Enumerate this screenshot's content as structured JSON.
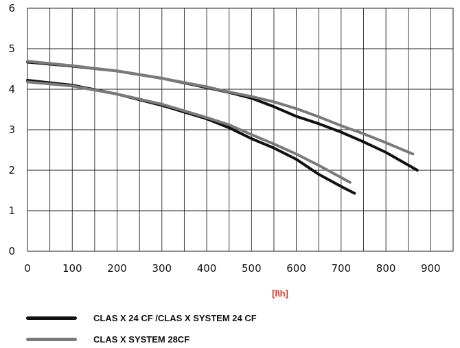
{
  "chart_data": {
    "type": "line",
    "title": "",
    "xlabel": "[l\\h]",
    "ylabel": "",
    "xlim": [
      0,
      950
    ],
    "ylim": [
      0,
      6
    ],
    "x_ticks": [
      0,
      100,
      200,
      300,
      400,
      500,
      600,
      700,
      800,
      900
    ],
    "y_ticks": [
      0,
      1,
      2,
      3,
      4,
      5,
      6
    ],
    "grid": true,
    "legend_position": "bottom",
    "label_color": "#d9322b",
    "series": [
      {
        "name": "CLAS X 24 CF /CLAS X SYSTEM 24 CF",
        "color": "#111111",
        "points": [
          [
            0,
            4.22
          ],
          [
            100,
            4.1
          ],
          [
            200,
            3.88
          ],
          [
            300,
            3.6
          ],
          [
            400,
            3.27
          ],
          [
            450,
            3.05
          ],
          [
            500,
            2.78
          ],
          [
            550,
            2.55
          ],
          [
            600,
            2.27
          ],
          [
            650,
            1.9
          ],
          [
            700,
            1.6
          ],
          [
            730,
            1.43
          ]
        ]
      },
      {
        "name": "CLAS X SYSTEM 28CF",
        "color": "#7a7a7a",
        "points": [
          [
            0,
            4.18
          ],
          [
            100,
            4.08
          ],
          [
            200,
            3.88
          ],
          [
            300,
            3.63
          ],
          [
            400,
            3.3
          ],
          [
            450,
            3.12
          ],
          [
            500,
            2.88
          ],
          [
            550,
            2.65
          ],
          [
            600,
            2.4
          ],
          [
            650,
            2.12
          ],
          [
            700,
            1.82
          ],
          [
            720,
            1.7
          ]
        ]
      },
      {
        "name": "CLAS X 24 CF /CLAS X SYSTEM 24 CF",
        "color": "#111111",
        "points": [
          [
            0,
            4.67
          ],
          [
            100,
            4.57
          ],
          [
            200,
            4.45
          ],
          [
            300,
            4.27
          ],
          [
            400,
            4.04
          ],
          [
            450,
            3.92
          ],
          [
            500,
            3.78
          ],
          [
            550,
            3.57
          ],
          [
            600,
            3.33
          ],
          [
            650,
            3.15
          ],
          [
            700,
            2.94
          ],
          [
            750,
            2.7
          ],
          [
            800,
            2.44
          ],
          [
            870,
            2.0
          ]
        ]
      },
      {
        "name": "CLAS X SYSTEM 28CF",
        "color": "#7a7a7a",
        "points": [
          [
            0,
            4.69
          ],
          [
            100,
            4.58
          ],
          [
            200,
            4.45
          ],
          [
            300,
            4.27
          ],
          [
            400,
            4.06
          ],
          [
            450,
            3.93
          ],
          [
            500,
            3.82
          ],
          [
            550,
            3.69
          ],
          [
            600,
            3.52
          ],
          [
            650,
            3.32
          ],
          [
            700,
            3.1
          ],
          [
            750,
            2.9
          ],
          [
            800,
            2.68
          ],
          [
            860,
            2.4
          ]
        ]
      }
    ]
  },
  "legend": [
    {
      "label": "CLAS X 24 CF /CLAS X SYSTEM 24 CF",
      "color": "#111111"
    },
    {
      "label": "CLAS X SYSTEM 28CF",
      "color": "#7a7a7a"
    }
  ]
}
